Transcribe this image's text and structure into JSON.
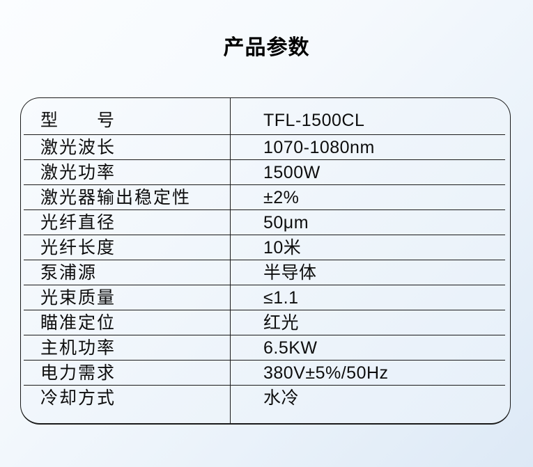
{
  "page": {
    "title": "产品参数"
  },
  "table": {
    "rows": [
      {
        "label": "型　　号",
        "value": "TFL-1500CL"
      },
      {
        "label": "激光波长",
        "value": "1070-1080nm"
      },
      {
        "label": "激光功率",
        "value": "1500W"
      },
      {
        "label": "激光器输出稳定性",
        "value": "±2%"
      },
      {
        "label": "光纤直径",
        "value": "50μm"
      },
      {
        "label": "光纤长度",
        "value": "10米"
      },
      {
        "label": "泵浦源",
        "value": "半导体"
      },
      {
        "label": "光束质量",
        "value": "≤1.1"
      },
      {
        "label": "瞄准定位",
        "value": "红光"
      },
      {
        "label": "主机功率",
        "value": "6.5KW"
      },
      {
        "label": "电力需求",
        "value": "380V±5%/50Hz"
      },
      {
        "label": "冷却方式",
        "value": "水冷"
      }
    ],
    "colors": {
      "line": "#1a1a1a",
      "text": "#0d0d0d",
      "page_bg_top": "#fbfdff",
      "page_bg_bottom": "#dde9f6",
      "table_bg_top": "#f8fbfe",
      "table_bg_bottom": "#e7f0f9"
    }
  }
}
